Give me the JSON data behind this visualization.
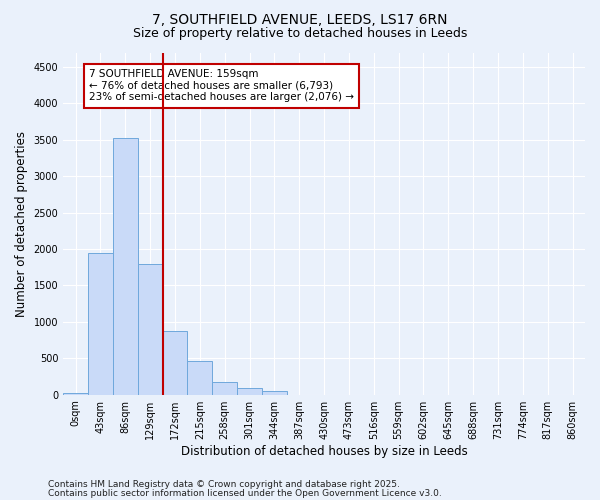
{
  "title1": "7, SOUTHFIELD AVENUE, LEEDS, LS17 6RN",
  "title2": "Size of property relative to detached houses in Leeds",
  "xlabel": "Distribution of detached houses by size in Leeds",
  "ylabel": "Number of detached properties",
  "bar_color": "#c9daf8",
  "bar_edge_color": "#6fa8dc",
  "categories": [
    "0sqm",
    "43sqm",
    "86sqm",
    "129sqm",
    "172sqm",
    "215sqm",
    "258sqm",
    "301sqm",
    "344sqm",
    "387sqm",
    "430sqm",
    "473sqm",
    "516sqm",
    "559sqm",
    "602sqm",
    "645sqm",
    "688sqm",
    "731sqm",
    "774sqm",
    "817sqm",
    "860sqm"
  ],
  "values": [
    20,
    1940,
    3520,
    1800,
    870,
    460,
    170,
    95,
    55,
    0,
    0,
    0,
    0,
    0,
    0,
    0,
    0,
    0,
    0,
    0,
    0
  ],
  "vline_x": 3.5,
  "vline_color": "#c00000",
  "annotation_text": "7 SOUTHFIELD AVENUE: 159sqm\n← 76% of detached houses are smaller (6,793)\n23% of semi-detached houses are larger (2,076) →",
  "annotation_box_color": "#ffffff",
  "annotation_box_edge": "#c00000",
  "ylim": [
    0,
    4700
  ],
  "yticks": [
    0,
    500,
    1000,
    1500,
    2000,
    2500,
    3000,
    3500,
    4000,
    4500
  ],
  "footer1": "Contains HM Land Registry data © Crown copyright and database right 2025.",
  "footer2": "Contains public sector information licensed under the Open Government Licence v3.0.",
  "bg_color": "#eaf1fb",
  "grid_color": "#ffffff",
  "title_fontsize": 10,
  "subtitle_fontsize": 9,
  "tick_fontsize": 7,
  "label_fontsize": 8.5,
  "footer_fontsize": 6.5,
  "ann_fontsize": 7.5
}
